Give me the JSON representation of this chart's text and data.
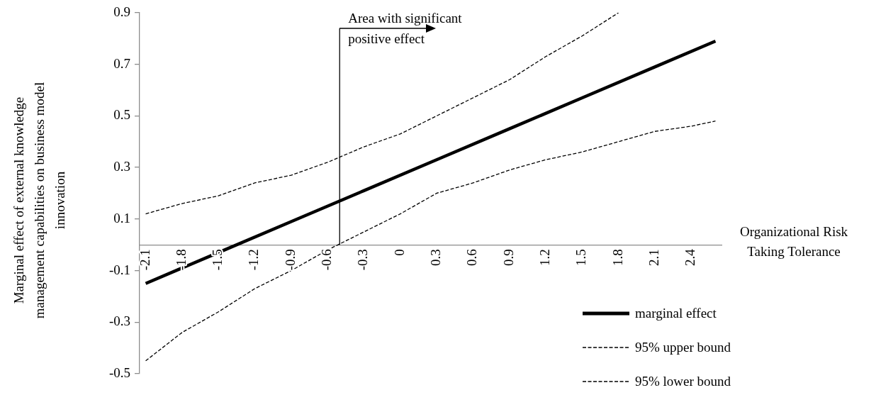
{
  "chart_data": {
    "type": "line",
    "xlabel": "Organizational Risk Taking Tolerance",
    "ylabel": "Marginal effect of external knowledge management capabilities on business model innovation",
    "xlim": [
      -2.15,
      2.65
    ],
    "xticks": [
      -2.1,
      -1.8,
      -1.5,
      -1.2,
      -0.9,
      -0.6,
      -0.3,
      0,
      0.3,
      0.6,
      0.9,
      1.2,
      1.5,
      1.8,
      2.1,
      2.4
    ],
    "ylim": [
      -0.5,
      0.9
    ],
    "yticks": [
      -0.5,
      -0.3,
      -0.1,
      0.1,
      0.3,
      0.5,
      0.7,
      0.9
    ],
    "grid": false,
    "legend": "bottom right",
    "marker": "none",
    "series": [
      {
        "name": "marginal effect",
        "color": "#000000",
        "line_style": "solid",
        "x": [
          -2.1,
          -1.5,
          -0.9,
          -0.3,
          0.3,
          0.9,
          1.5,
          2.1,
          2.6
        ],
        "values": [
          -0.15,
          -0.03,
          0.09,
          0.21,
          0.33,
          0.45,
          0.57,
          0.69,
          0.79
        ]
      },
      {
        "name": "95% upper bound",
        "color": "#000000",
        "line_style": "dashed",
        "x": [
          -2.1,
          -1.8,
          -1.5,
          -1.2,
          -0.9,
          -0.6,
          -0.3,
          0,
          0.3,
          0.6,
          0.9,
          1.2,
          1.5,
          1.8
        ],
        "values": [
          0.12,
          0.16,
          0.19,
          0.24,
          0.27,
          0.32,
          0.38,
          0.43,
          0.5,
          0.57,
          0.64,
          0.73,
          0.81,
          0.9
        ]
      },
      {
        "name": "95% lower bound",
        "color": "#000000",
        "line_style": "dashed",
        "x": [
          -2.1,
          -1.8,
          -1.5,
          -1.2,
          -0.9,
          -0.6,
          -0.3,
          0,
          0.3,
          0.6,
          0.9,
          1.2,
          1.5,
          1.8,
          2.1,
          2.4,
          2.6
        ],
        "values": [
          -0.45,
          -0.34,
          -0.26,
          -0.17,
          -0.1,
          -0.02,
          0.05,
          0.12,
          0.2,
          0.24,
          0.29,
          0.33,
          0.36,
          0.4,
          0.44,
          0.46,
          0.48
        ]
      }
    ],
    "ref_lines": [
      {
        "axis": "x",
        "value": -0.5,
        "label": "Area with significant positive effect"
      }
    ]
  }
}
